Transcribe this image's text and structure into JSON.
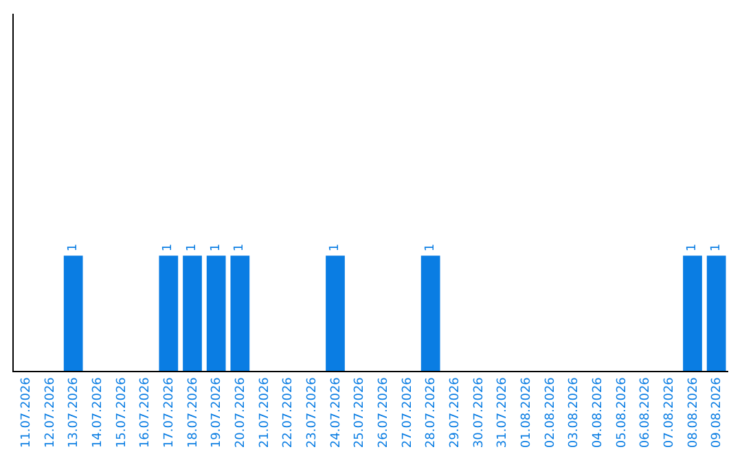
{
  "chart_data": {
    "type": "bar",
    "categories": [
      "11.07.2026",
      "12.07.2026",
      "13.07.2026",
      "14.07.2026",
      "15.07.2026",
      "16.07.2026",
      "17.07.2026",
      "18.07.2026",
      "19.07.2026",
      "20.07.2026",
      "21.07.2026",
      "22.07.2026",
      "23.07.2026",
      "24.07.2026",
      "25.07.2026",
      "26.07.2026",
      "27.07.2026",
      "28.07.2026",
      "29.07.2026",
      "30.07.2026",
      "31.07.2026",
      "01.08.2026",
      "02.08.2026",
      "03.08.2026",
      "04.08.2026",
      "05.08.2026",
      "06.08.2026",
      "07.08.2026",
      "08.08.2026",
      "09.08.2026"
    ],
    "values": [
      0,
      0,
      1,
      0,
      0,
      0,
      1,
      1,
      1,
      1,
      0,
      0,
      0,
      1,
      0,
      0,
      0,
      1,
      0,
      0,
      0,
      0,
      0,
      0,
      0,
      0,
      0,
      0,
      1,
      1
    ],
    "value_labels": [
      null,
      null,
      "1",
      null,
      null,
      null,
      "1",
      "1",
      "1",
      "1",
      null,
      null,
      null,
      "1",
      null,
      null,
      null,
      "1",
      null,
      null,
      null,
      null,
      null,
      null,
      null,
      null,
      null,
      null,
      "1",
      "1"
    ],
    "color": "#0a7de3",
    "ylim": [
      0,
      3.1
    ],
    "tick_labels": "x",
    "legend": false
  }
}
